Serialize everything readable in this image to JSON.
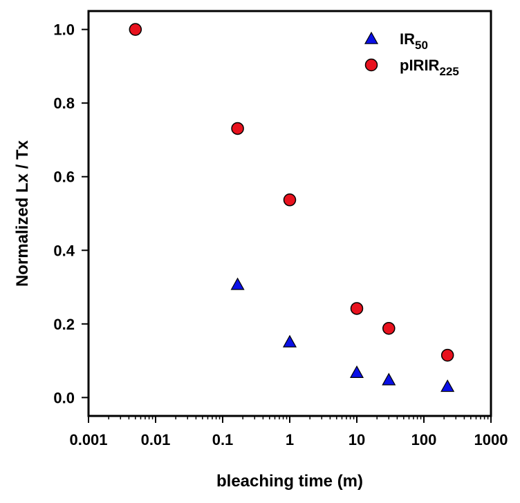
{
  "chart_data": {
    "type": "scatter",
    "title": "",
    "xlabel": "bleaching time (m)",
    "ylabel": "Normalized Lx / Tx",
    "x_scale": "log",
    "xlim": [
      0.001,
      1000
    ],
    "ylim": [
      -0.05,
      1.05
    ],
    "x_ticks": [
      0.001,
      0.01,
      0.1,
      1,
      10,
      100,
      1000
    ],
    "x_tick_labels": [
      "0.001",
      "0.01",
      "0.1",
      "1",
      "10",
      "100",
      "1000"
    ],
    "y_ticks": [
      0.0,
      0.2,
      0.4,
      0.6,
      0.8,
      1.0
    ],
    "y_tick_labels": [
      "0.0",
      "0.2",
      "0.4",
      "0.6",
      "0.8",
      "1.0"
    ],
    "grid": false,
    "legend_position": "top-right",
    "series": [
      {
        "name": "IR50",
        "name_base": "IR",
        "name_sub": "50",
        "marker": "triangle",
        "color": "#0a10e6",
        "points": [
          {
            "x": 0.167,
            "y": 0.307
          },
          {
            "x": 1,
            "y": 0.151
          },
          {
            "x": 10,
            "y": 0.068
          },
          {
            "x": 30,
            "y": 0.048
          },
          {
            "x": 225,
            "y": 0.03
          }
        ]
      },
      {
        "name": "pIRIR225",
        "name_base": "pIRIR",
        "name_sub": "225",
        "marker": "circle",
        "color": "#e8121e",
        "points": [
          {
            "x": 0.005,
            "y": 1.0
          },
          {
            "x": 0.167,
            "y": 0.731
          },
          {
            "x": 1,
            "y": 0.537
          },
          {
            "x": 10,
            "y": 0.242
          },
          {
            "x": 30,
            "y": 0.188
          },
          {
            "x": 225,
            "y": 0.115
          }
        ]
      }
    ]
  }
}
